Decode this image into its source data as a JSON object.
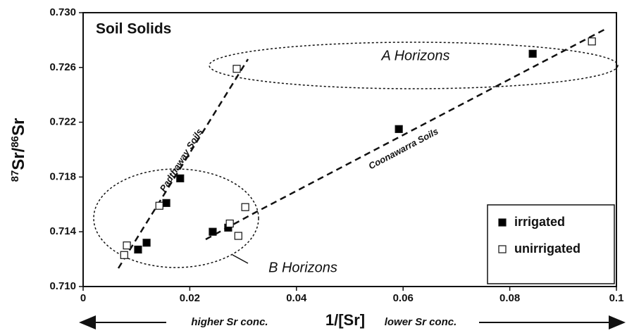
{
  "chart_data": {
    "type": "scatter",
    "title": "Soil Solids",
    "xlabel": "1/[Sr]",
    "ylabel": [
      "87",
      "Sr/",
      "86",
      "Sr"
    ],
    "x_annotations": [
      "higher Sr conc.",
      "lower Sr conc."
    ],
    "annotations": [
      "A Horizons",
      "B Horizons",
      "Padthaway Soils",
      "Coonawarra Soils"
    ],
    "xlim": [
      0,
      0.1
    ],
    "ylim": [
      0.71,
      0.73
    ],
    "xticks": [
      0,
      0.02,
      0.04,
      0.06,
      0.08,
      0.1
    ],
    "yticks": [
      {
        "value": 0.71,
        "label": "0.710"
      },
      {
        "value": 0.714,
        "label": "0.714"
      },
      {
        "value": 0.718,
        "label": "0.718"
      },
      {
        "value": 0.722,
        "label": "0.722"
      },
      {
        "value": 0.726,
        "label": "0.726"
      },
      {
        "value": 0.73,
        "label": "0.730"
      }
    ],
    "legend": "lower right",
    "series": [
      {
        "name": "irrigated",
        "color": "#000000",
        "x": [
          0.0182,
          0.0156,
          0.0119,
          0.0103,
          0.0243,
          0.0272,
          0.0592,
          0.0843
        ],
        "values": [
          0.7179,
          0.7161,
          0.7132,
          0.7127,
          0.714,
          0.7143,
          0.7215,
          0.727
        ]
      },
      {
        "name": "unirrigated",
        "color": "#ffffff",
        "x": [
          0.0288,
          0.0954,
          0.0143,
          0.0275,
          0.0304,
          0.0291,
          0.0082,
          0.0077
        ],
        "values": [
          0.7259,
          0.7279,
          0.7159,
          0.7146,
          0.7158,
          0.7137,
          0.713,
          0.7123
        ]
      }
    ]
  }
}
